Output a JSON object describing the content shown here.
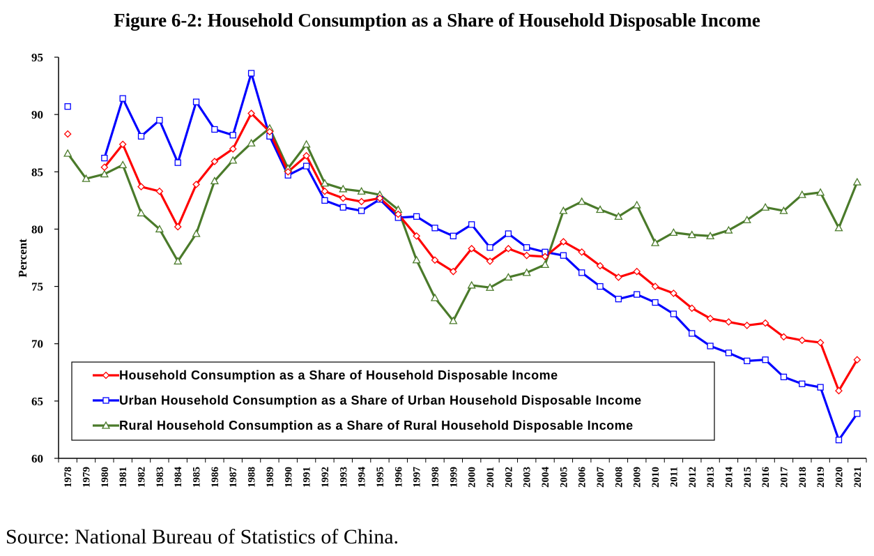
{
  "title": "Figure 6-2: Household Consumption as a Share of Household Disposable Income",
  "source": "Source: National Bureau of Statistics of China.",
  "chart_data": {
    "type": "line",
    "ylabel": "Percent",
    "xlabel": "",
    "ylim": [
      60,
      95
    ],
    "yticks": [
      60,
      65,
      70,
      75,
      80,
      85,
      90,
      95
    ],
    "grid": false,
    "legend_position": "bottom-left",
    "x": [
      "1978",
      "1979",
      "1980",
      "1981",
      "1982",
      "1983",
      "1984",
      "1985",
      "1986",
      "1987",
      "1988",
      "1989",
      "1990",
      "1991",
      "1992",
      "1993",
      "1994",
      "1995",
      "1996",
      "1997",
      "1998",
      "1999",
      "2000",
      "2001",
      "2002",
      "2003",
      "2004",
      "2005",
      "2006",
      "2007",
      "2008",
      "2009",
      "2010",
      "2011",
      "2012",
      "2013",
      "2014",
      "2015",
      "2016",
      "2017",
      "2018",
      "2019",
      "2020",
      "2021"
    ],
    "series": [
      {
        "name": "Household Consumption as a Share of Household Disposable Income",
        "color": "#ff0000",
        "marker": "diamond",
        "values": [
          88.3,
          null,
          85.4,
          87.4,
          83.7,
          83.3,
          80.2,
          83.9,
          85.9,
          87.0,
          90.1,
          88.5,
          85.0,
          86.4,
          83.3,
          82.7,
          82.4,
          82.7,
          81.3,
          79.4,
          77.3,
          76.3,
          78.3,
          77.2,
          78.3,
          77.7,
          77.6,
          78.9,
          78.0,
          76.8,
          75.8,
          76.3,
          75.0,
          74.4,
          73.1,
          72.2,
          71.9,
          71.6,
          71.8,
          70.6,
          70.3,
          70.1,
          65.9,
          68.6
        ]
      },
      {
        "name": "Urban Household Consumption as a Share of Urban Household Disposable Income",
        "color": "#0000ff",
        "marker": "square",
        "values": [
          90.7,
          null,
          86.2,
          91.4,
          88.1,
          89.5,
          85.8,
          91.1,
          88.7,
          88.2,
          93.6,
          88.1,
          84.7,
          85.5,
          82.5,
          81.9,
          81.6,
          82.6,
          81.0,
          81.1,
          80.1,
          79.4,
          80.4,
          78.4,
          79.6,
          78.4,
          78.0,
          77.7,
          76.2,
          75.0,
          73.9,
          74.3,
          73.6,
          72.6,
          70.9,
          69.8,
          69.2,
          68.5,
          68.6,
          67.1,
          66.5,
          66.2,
          61.6,
          63.9
        ]
      },
      {
        "name": "Rural Household Consumption as a Share of Rural Household Disposable Income",
        "color": "#4a7a2a",
        "marker": "triangle",
        "values": [
          86.6,
          84.4,
          84.8,
          85.6,
          81.4,
          80.0,
          77.2,
          79.6,
          84.2,
          86.0,
          87.5,
          88.8,
          85.3,
          87.4,
          84.0,
          83.5,
          83.3,
          83.0,
          81.7,
          77.3,
          74.0,
          72.0,
          75.1,
          74.9,
          75.8,
          76.2,
          76.9,
          81.6,
          82.4,
          81.7,
          81.1,
          82.1,
          78.8,
          79.7,
          79.5,
          79.4,
          79.9,
          80.8,
          81.9,
          81.6,
          83.0,
          83.2,
          80.1,
          84.1
        ]
      }
    ]
  }
}
